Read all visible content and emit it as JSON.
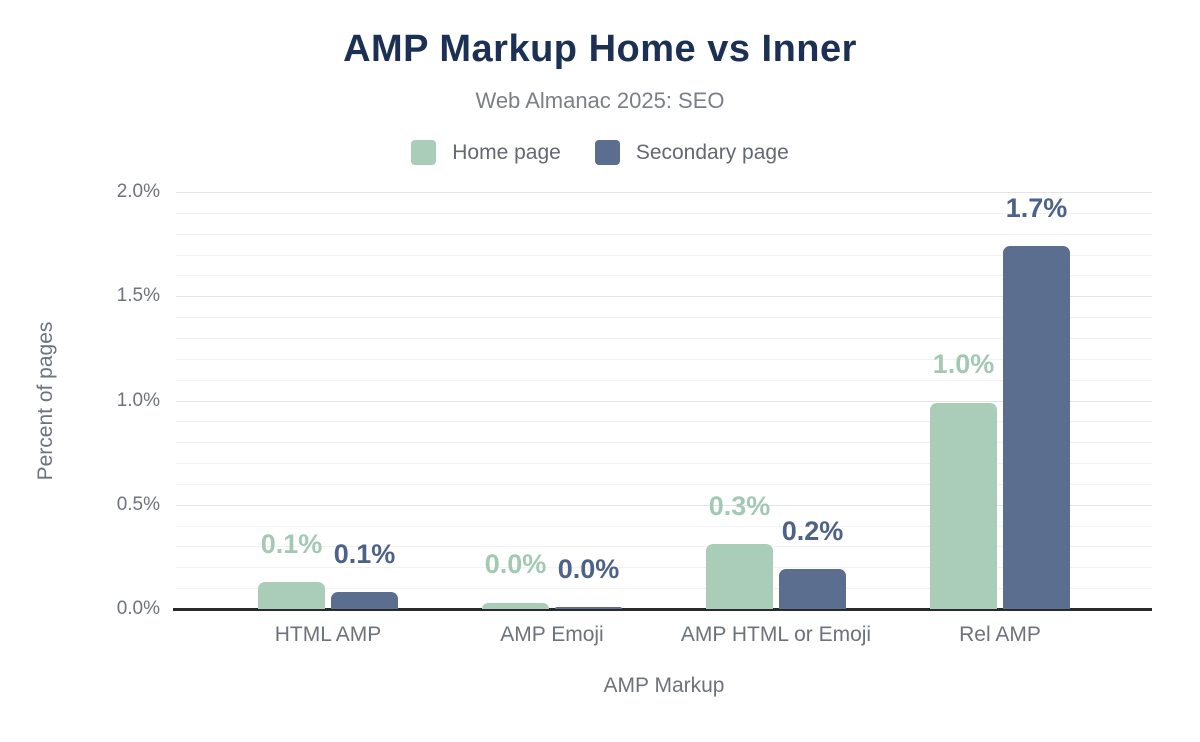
{
  "title": "AMP Markup Home vs Inner",
  "subtitle": "Web Almanac 2025: SEO",
  "legend": [
    {
      "label": "Home page",
      "color": "#a9cdb9"
    },
    {
      "label": "Secondary page",
      "color": "#5b6e8f"
    }
  ],
  "colors": {
    "title": "#1c3054",
    "subtitle": "#7b8087",
    "axis_text": "#6e737b",
    "legend_text": "#636871",
    "grid_major": "#e4e4e4",
    "grid_minor": "#f2f2f2",
    "baseline": "#2a2a2a",
    "home_series": "#a9cdb9",
    "home_label": "#a3c9b4",
    "secondary_series": "#5b6e8f",
    "secondary_label": "#4d6287"
  },
  "chart_data": {
    "type": "bar",
    "title": "AMP Markup Home vs Inner",
    "subtitle": "Web Almanac 2025: SEO",
    "categories": [
      "HTML AMP",
      "AMP Emoji",
      "AMP HTML or Emoji",
      "Rel AMP"
    ],
    "series": [
      {
        "name": "Home page",
        "color": "#a9cdb9",
        "label_color": "#a3c9b4",
        "values": [
          0.13,
          0.03,
          0.31,
          0.99
        ],
        "labels": [
          "0.1%",
          "0.0%",
          "0.3%",
          "1.0%"
        ]
      },
      {
        "name": "Secondary page",
        "color": "#5b6e8f",
        "label_color": "#4d6287",
        "values": [
          0.08,
          0.01,
          0.19,
          1.74
        ],
        "labels": [
          "0.1%",
          "0.0%",
          "0.2%",
          "1.7%"
        ]
      }
    ],
    "xlabel": "AMP Markup",
    "ylabel": "Percent of pages",
    "ylim": [
      0,
      2.0
    ],
    "yticks": [
      {
        "value": 0.0,
        "label": "0.0%"
      },
      {
        "value": 0.5,
        "label": "0.5%"
      },
      {
        "value": 1.0,
        "label": "1.0%"
      },
      {
        "value": 1.5,
        "label": "1.5%"
      },
      {
        "value": 2.0,
        "label": "2.0%"
      }
    ],
    "minor_tick_step": 0.1,
    "grid": true,
    "legend_position": "top"
  }
}
